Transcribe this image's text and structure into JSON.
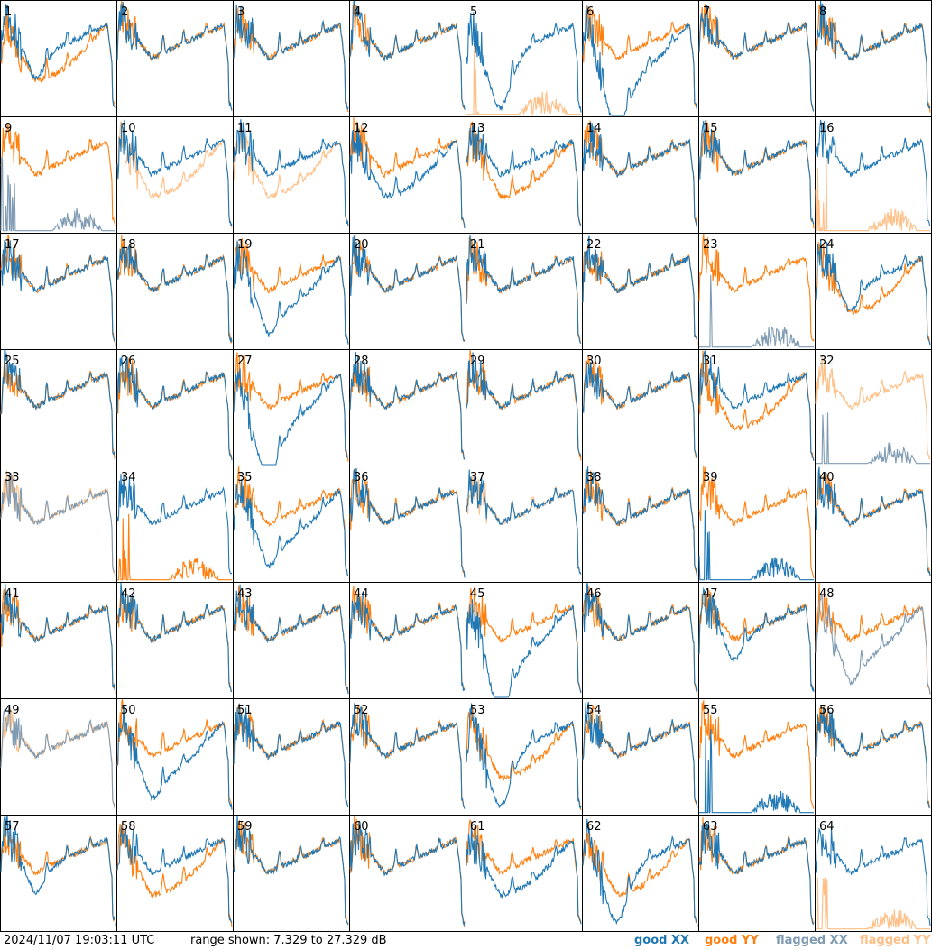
{
  "footer": {
    "timestamp": "2024/11/07 19:03:11 UTC",
    "range_text": "range shown: 7.329 to 27.329 dB",
    "legend": {
      "good_xx": "good XX",
      "good_yy": "good YY",
      "flagged_xx": "flagged XX",
      "flagged_yy": "flagged YY"
    }
  },
  "colors": {
    "good_xx": "#1f77b4",
    "good_yy": "#ff7f0e",
    "flagged_xx": "#7f9bb3",
    "flagged_yy": "#ffbf86"
  },
  "chart_data": {
    "type": "line",
    "grid": "8x8 small multiples",
    "y_range_db": [
      7.329,
      27.329
    ],
    "panels": [
      {
        "id": "1",
        "xx": "good",
        "yy": "good",
        "yy_level": "low",
        "dip": "mild"
      },
      {
        "id": "2",
        "xx": "good",
        "yy": "good"
      },
      {
        "id": "3",
        "xx": "good",
        "yy": "good"
      },
      {
        "id": "4",
        "xx": "good",
        "yy": "good"
      },
      {
        "id": "5",
        "xx": "good",
        "yy": "flagged",
        "yy_level": "absent",
        "dip": "deep"
      },
      {
        "id": "6",
        "xx": "good",
        "yy": "good",
        "xx_level": "low",
        "dip": "deep"
      },
      {
        "id": "7",
        "xx": "good",
        "yy": "good"
      },
      {
        "id": "8",
        "xx": "good",
        "yy": "good"
      },
      {
        "id": "9",
        "xx": "flagged",
        "yy": "good",
        "xx_level": "absent"
      },
      {
        "id": "10",
        "xx": "good",
        "yy": "flagged",
        "yy_level": "low"
      },
      {
        "id": "11",
        "xx": "good",
        "yy": "flagged",
        "yy_level": "low"
      },
      {
        "id": "12",
        "xx": "good",
        "yy": "good",
        "xx_level": "low"
      },
      {
        "id": "13",
        "xx": "good",
        "yy": "good",
        "yy_level": "low"
      },
      {
        "id": "14",
        "xx": "good",
        "yy": "good"
      },
      {
        "id": "15",
        "xx": "good",
        "yy": "good"
      },
      {
        "id": "16",
        "xx": "good",
        "yy": "flagged",
        "yy_level": "absent"
      },
      {
        "id": "17",
        "xx": "good",
        "yy": "good"
      },
      {
        "id": "18",
        "xx": "good",
        "yy": "good"
      },
      {
        "id": "19",
        "xx": "good",
        "yy": "good",
        "xx_level": "low",
        "dip": "mild"
      },
      {
        "id": "20",
        "xx": "good",
        "yy": "good"
      },
      {
        "id": "21",
        "xx": "good",
        "yy": "good"
      },
      {
        "id": "22",
        "xx": "good",
        "yy": "good"
      },
      {
        "id": "23",
        "xx": "flagged",
        "yy": "good",
        "xx_level": "absent"
      },
      {
        "id": "24",
        "xx": "good",
        "yy": "good",
        "yy_level": "low",
        "dip": "mild"
      },
      {
        "id": "25",
        "xx": "good",
        "yy": "good"
      },
      {
        "id": "26",
        "xx": "good",
        "yy": "good"
      },
      {
        "id": "27",
        "xx": "good",
        "yy": "good",
        "xx_level": "low",
        "dip": "deep"
      },
      {
        "id": "28",
        "xx": "good",
        "yy": "good"
      },
      {
        "id": "29",
        "xx": "good",
        "yy": "good"
      },
      {
        "id": "30",
        "xx": "good",
        "yy": "good"
      },
      {
        "id": "31",
        "xx": "good",
        "yy": "good",
        "yy_level": "low"
      },
      {
        "id": "32",
        "xx": "flagged",
        "yy": "flagged",
        "xx_level": "absent"
      },
      {
        "id": "33",
        "xx": "flagged",
        "yy": "flagged"
      },
      {
        "id": "34",
        "xx": "good",
        "yy": "good",
        "yy_level": "absent"
      },
      {
        "id": "35",
        "xx": "good",
        "yy": "good",
        "xx_level": "low",
        "dip": "mild"
      },
      {
        "id": "36",
        "xx": "good",
        "yy": "good"
      },
      {
        "id": "37",
        "xx": "good",
        "yy": "flagged"
      },
      {
        "id": "38",
        "xx": "good",
        "yy": "good"
      },
      {
        "id": "39",
        "xx": "good",
        "yy": "good",
        "xx_level": "absent"
      },
      {
        "id": "40",
        "xx": "good",
        "yy": "good"
      },
      {
        "id": "41",
        "xx": "good",
        "yy": "good"
      },
      {
        "id": "42",
        "xx": "good",
        "yy": "good"
      },
      {
        "id": "43",
        "xx": "good",
        "yy": "good"
      },
      {
        "id": "44",
        "xx": "good",
        "yy": "good"
      },
      {
        "id": "45",
        "xx": "good",
        "yy": "good",
        "xx_level": "low",
        "dip": "deep"
      },
      {
        "id": "46",
        "xx": "good",
        "yy": "good"
      },
      {
        "id": "47",
        "xx": "good",
        "yy": "good",
        "dip": "mild"
      },
      {
        "id": "48",
        "xx": "flagged",
        "yy": "good",
        "xx_level": "low",
        "dip": "mild"
      },
      {
        "id": "49",
        "xx": "flagged",
        "yy": "flagged"
      },
      {
        "id": "50",
        "xx": "good",
        "yy": "good",
        "xx_level": "low",
        "dip": "mild"
      },
      {
        "id": "51",
        "xx": "good",
        "yy": "good"
      },
      {
        "id": "52",
        "xx": "good",
        "yy": "good"
      },
      {
        "id": "53",
        "xx": "good",
        "yy": "good",
        "yy_level": "low",
        "dip": "deep"
      },
      {
        "id": "54",
        "xx": "good",
        "yy": "good"
      },
      {
        "id": "55",
        "xx": "good",
        "yy": "good",
        "xx_level": "absent"
      },
      {
        "id": "56",
        "xx": "good",
        "yy": "good"
      },
      {
        "id": "57",
        "xx": "good",
        "yy": "good",
        "dip": "mild"
      },
      {
        "id": "58",
        "xx": "good",
        "yy": "good",
        "yy_level": "low"
      },
      {
        "id": "59",
        "xx": "good",
        "yy": "good"
      },
      {
        "id": "60",
        "xx": "good",
        "yy": "good"
      },
      {
        "id": "61",
        "xx": "good",
        "yy": "good",
        "xx_level": "low"
      },
      {
        "id": "62",
        "xx": "good",
        "yy": "good",
        "yy_level": "low",
        "dip": "deep"
      },
      {
        "id": "63",
        "xx": "good",
        "yy": "good"
      },
      {
        "id": "64",
        "xx": "good",
        "yy": "flagged",
        "yy_level": "absent"
      }
    ]
  }
}
